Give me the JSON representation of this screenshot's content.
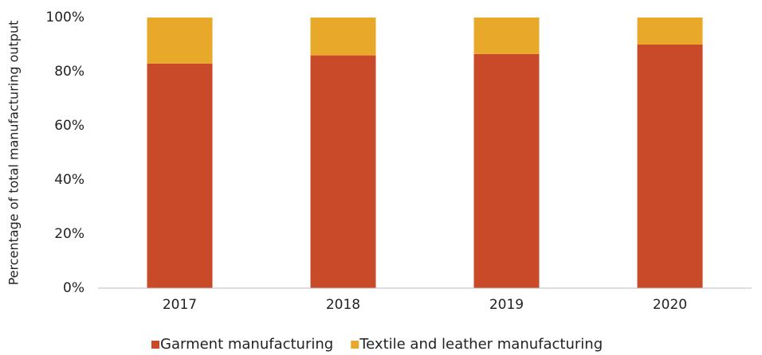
{
  "chart_data": {
    "type": "stacked_bar",
    "y_label": "Percentage of total manufacturing output",
    "categories": [
      "2017",
      "2018",
      "2019",
      "2020"
    ],
    "series": [
      {
        "name": "Garment manufacturing",
        "color": "#c94a29",
        "values": [
          83,
          86,
          86.5,
          90
        ]
      },
      {
        "name": "Textile and leather manufacturing",
        "color": "#e8a82a",
        "values": [
          17,
          14,
          13.5,
          10
        ]
      }
    ],
    "ylim": [
      0,
      100
    ],
    "yticks": [
      {
        "value": 0,
        "label": "0%"
      },
      {
        "value": 20,
        "label": "20%"
      },
      {
        "value": 40,
        "label": "40%"
      },
      {
        "value": 60,
        "label": "60%"
      },
      {
        "value": 80,
        "label": "80%"
      },
      {
        "value": 100,
        "label": "100%"
      }
    ],
    "grid": false,
    "legend": "bottom"
  }
}
